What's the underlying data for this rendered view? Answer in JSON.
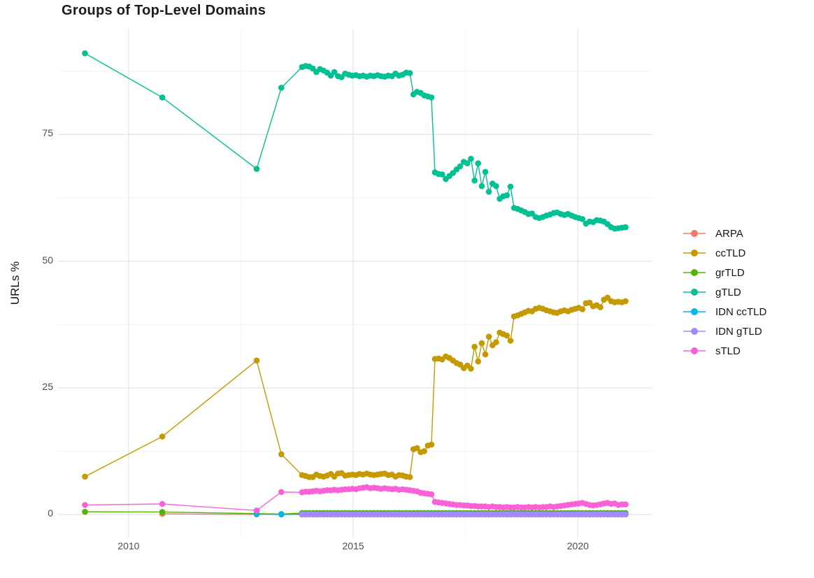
{
  "chart_data": {
    "type": "line",
    "title": "Groups of Top-Level Domains",
    "xlabel": "",
    "ylabel": "URLs %",
    "grid": true,
    "legend_position": "right",
    "background": "#ffffff",
    "major_grid_color": "#e5e5e5",
    "minor_grid_color": "#f2f2f2",
    "axis_text_color": "#4d4d4d",
    "x_ticks": {
      "values": [
        2010,
        2015,
        2020
      ],
      "labels": [
        "2010",
        "2015",
        "2020"
      ]
    },
    "y_ticks": {
      "values": [
        0,
        25,
        50,
        75
      ],
      "labels": [
        "0",
        "25",
        "50",
        "75"
      ]
    },
    "x_minor": [
      2012.5,
      2017.5
    ],
    "y_minor": [
      12.5,
      37.5,
      62.5,
      87.5
    ],
    "x_range": [
      2008.43,
      2021.66
    ],
    "y_range": [
      -4.6,
      95.8
    ],
    "dense_x": {
      "start": 2013.86,
      "step": 0.08,
      "count": 91
    },
    "series": [
      {
        "name": "ARPA",
        "color": "#F8766D",
        "points": [
          [
            2010.75,
            0.15
          ],
          [
            2012.85,
            0.05
          ]
        ],
        "dense_flat": 0.02
      },
      {
        "name": "ccTLD",
        "color": "#C49A00",
        "points": [
          [
            2009.03,
            7.5
          ],
          [
            2010.75,
            15.4
          ],
          [
            2012.85,
            30.4
          ],
          [
            2013.4,
            11.9
          ]
        ],
        "dense_values": [
          7.8,
          7.6,
          7.4,
          7.4,
          7.9,
          7.6,
          7.5,
          7.7,
          8.0,
          7.5,
          8.1,
          8.2,
          7.7,
          7.8,
          7.9,
          7.8,
          8.0,
          7.9,
          8.1,
          7.9,
          7.8,
          7.9,
          8.0,
          8.1,
          7.8,
          7.9,
          7.5,
          7.8,
          7.7,
          7.5,
          7.4,
          12.9,
          13.1,
          12.3,
          12.5,
          13.6,
          13.8,
          30.7,
          30.8,
          30.6,
          31.2,
          30.9,
          30.4,
          29.9,
          29.6,
          28.9,
          29.4,
          28.8,
          33.1,
          30.2,
          33.8,
          31.6,
          35.1,
          33.4,
          34.0,
          35.9,
          35.6,
          35.3,
          34.3,
          39.1,
          39.3,
          39.6,
          39.9,
          40.2,
          40.1,
          40.6,
          40.8,
          40.6,
          40.3,
          40.1,
          39.9,
          39.8,
          40.1,
          40.3,
          40.1,
          40.4,
          40.6,
          40.8,
          40.5,
          41.7,
          41.8,
          41.1,
          41.3,
          40.9,
          42.4,
          42.8,
          42.1,
          41.9,
          42.0,
          41.9,
          42.1
        ]
      },
      {
        "name": "grTLD",
        "color": "#53B400",
        "points": [
          [
            2009.03,
            0.55
          ],
          [
            2010.75,
            0.5
          ],
          [
            2012.85,
            0.2
          ],
          [
            2013.4,
            0.1
          ]
        ],
        "dense_flat": 0.3
      },
      {
        "name": "gTLD",
        "color": "#00C094",
        "points": [
          [
            2009.03,
            91.0
          ],
          [
            2010.75,
            82.3
          ],
          [
            2012.85,
            68.2
          ],
          [
            2013.4,
            84.2
          ]
        ],
        "dense_values": [
          88.3,
          88.5,
          88.4,
          88.0,
          87.3,
          87.9,
          87.6,
          87.2,
          86.6,
          87.3,
          86.5,
          86.3,
          87.0,
          86.8,
          86.6,
          86.7,
          86.5,
          86.6,
          86.4,
          86.6,
          86.5,
          86.7,
          86.5,
          86.4,
          86.6,
          86.5,
          87.0,
          86.6,
          86.8,
          87.2,
          87.1,
          82.9,
          83.4,
          83.2,
          82.7,
          82.5,
          82.3,
          67.5,
          67.2,
          67.1,
          66.2,
          66.8,
          67.4,
          68.1,
          68.7,
          69.6,
          69.3,
          70.2,
          65.9,
          69.3,
          64.8,
          67.6,
          63.7,
          65.3,
          64.8,
          62.3,
          62.8,
          63.0,
          64.7,
          60.5,
          60.3,
          60.0,
          59.7,
          59.3,
          59.4,
          58.7,
          58.5,
          58.7,
          59.0,
          59.2,
          59.5,
          59.6,
          59.3,
          59.1,
          59.3,
          59.0,
          58.7,
          58.5,
          58.3,
          57.4,
          57.8,
          57.7,
          58.1,
          58.0,
          57.8,
          57.3,
          56.7,
          56.4,
          56.5,
          56.6,
          56.7
        ]
      },
      {
        "name": "IDN ccTLD",
        "color": "#00B6EB",
        "points": [
          [
            2012.85,
            0.1
          ],
          [
            2013.4,
            0.05
          ]
        ],
        "dense_flat": 0.08
      },
      {
        "name": "IDN gTLD",
        "color": "#A58AFF",
        "points": [],
        "dense_flat": 0.03
      },
      {
        "name": "sTLD",
        "color": "#FB61D7",
        "points": [
          [
            2009.03,
            1.9
          ],
          [
            2010.75,
            2.1
          ],
          [
            2012.85,
            0.8
          ],
          [
            2013.4,
            4.45
          ]
        ],
        "dense_values": [
          4.4,
          4.5,
          4.5,
          4.6,
          4.7,
          4.6,
          4.7,
          4.8,
          4.8,
          4.9,
          4.8,
          4.9,
          5.0,
          5.0,
          5.1,
          5.0,
          5.2,
          5.3,
          5.4,
          5.2,
          5.3,
          5.2,
          5.1,
          5.2,
          5.1,
          5.0,
          5.1,
          4.9,
          5.0,
          4.9,
          4.8,
          4.7,
          4.6,
          4.3,
          4.2,
          4.1,
          4.0,
          2.5,
          2.4,
          2.3,
          2.2,
          2.1,
          2.0,
          1.9,
          1.9,
          1.8,
          1.8,
          1.7,
          1.7,
          1.6,
          1.6,
          1.6,
          1.5,
          1.6,
          1.5,
          1.5,
          1.4,
          1.5,
          1.4,
          1.4,
          1.5,
          1.4,
          1.4,
          1.5,
          1.4,
          1.5,
          1.4,
          1.5,
          1.5,
          1.6,
          1.5,
          1.6,
          1.7,
          1.8,
          1.9,
          2.0,
          2.1,
          2.2,
          2.3,
          2.1,
          1.9,
          1.8,
          1.9,
          2.0,
          2.2,
          2.3,
          2.1,
          2.2,
          1.9,
          2.0,
          2.0
        ]
      }
    ]
  }
}
